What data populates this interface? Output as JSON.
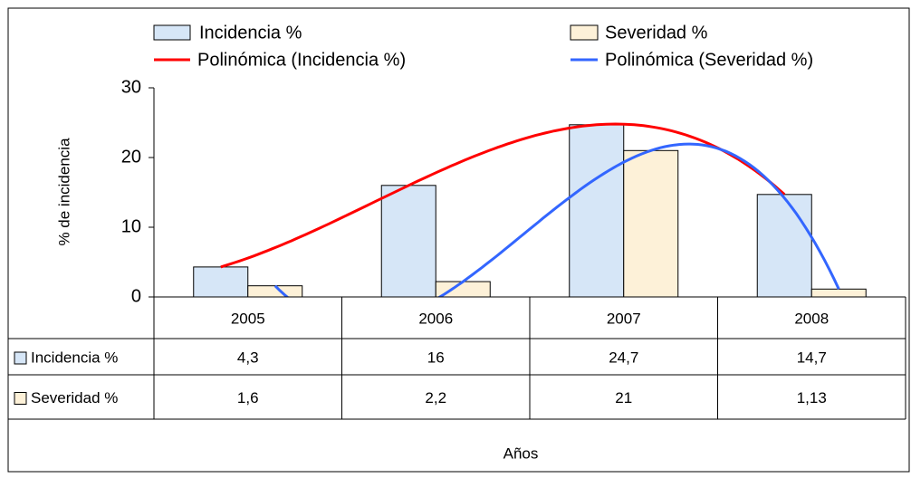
{
  "chart_data": {
    "type": "bar",
    "categories": [
      "2005",
      "2006",
      "2007",
      "2008"
    ],
    "series": [
      {
        "name": "Incidencia %",
        "color": "#d6e6f7",
        "values": [
          4.3,
          16,
          24.7,
          14.7
        ],
        "value_labels": [
          "4,3",
          "16",
          "24,7",
          "14,7"
        ]
      },
      {
        "name": "Severidad %",
        "color": "#fdf1d8",
        "values": [
          1.6,
          2.2,
          21,
          1.13
        ],
        "value_labels": [
          "1,6",
          "2,2",
          "21",
          "1,13"
        ]
      }
    ],
    "trendlines": [
      {
        "name": "Polinómica (Incidencia %)",
        "color": "#ff0000",
        "series": 0,
        "order": 3
      },
      {
        "name": "Polinómica (Severidad %)",
        "color": "#3366ff",
        "series": 1,
        "order": 3
      }
    ],
    "y_label": "% de incidencia",
    "x_label": "Años",
    "ylim": [
      0,
      30
    ],
    "yticks": [
      0,
      10,
      20,
      30
    ]
  }
}
